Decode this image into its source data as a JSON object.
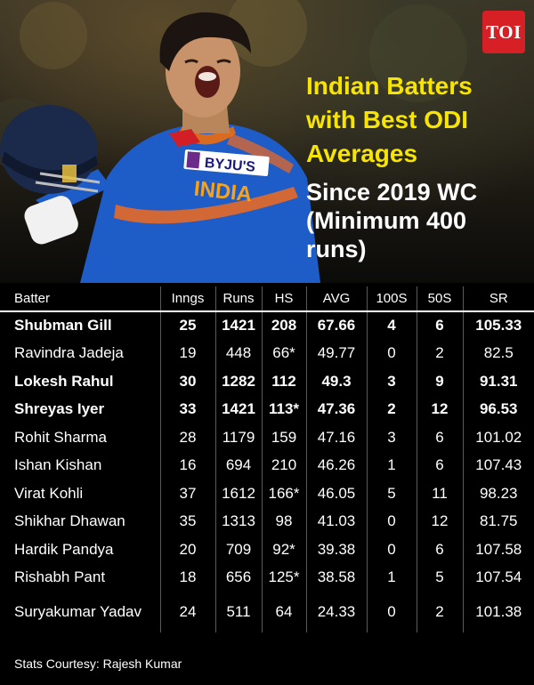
{
  "brand": "TOI",
  "headline": "Indian Batters with Best ODI Averages",
  "subheadline": "Since 2019 WC (Minimum 400 runs)",
  "photo": {
    "jersey_text": "INDIA",
    "sponsor_text": "BYJU'S"
  },
  "table": {
    "headers": [
      "Batter",
      "Inngs",
      "Runs",
      "HS",
      "AVG",
      "100S",
      "50S",
      "SR"
    ],
    "rows": [
      {
        "batter": "Shubman Gill",
        "inngs": "25",
        "runs": "1421",
        "hs": "208",
        "avg": "67.66",
        "hundreds": "4",
        "fifties": "6",
        "sr": "105.33",
        "bold": true
      },
      {
        "batter": "Ravindra Jadeja",
        "inngs": "19",
        "runs": "448",
        "hs": "66*",
        "avg": "49.77",
        "hundreds": "0",
        "fifties": "2",
        "sr": "82.5",
        "bold": false
      },
      {
        "batter": "Lokesh Rahul",
        "inngs": "30",
        "runs": "1282",
        "hs": "112",
        "avg": "49.3",
        "hundreds": "3",
        "fifties": "9",
        "sr": "91.31",
        "bold": true
      },
      {
        "batter": "Shreyas Iyer",
        "inngs": "33",
        "runs": "1421",
        "hs": "113*",
        "avg": "47.36",
        "hundreds": "2",
        "fifties": "12",
        "sr": "96.53",
        "bold": true
      },
      {
        "batter": "Rohit Sharma",
        "inngs": "28",
        "runs": "1179",
        "hs": "159",
        "avg": "47.16",
        "hundreds": "3",
        "fifties": "6",
        "sr": "101.02",
        "bold": false
      },
      {
        "batter": "Ishan Kishan",
        "inngs": "16",
        "runs": "694",
        "hs": "210",
        "avg": "46.26",
        "hundreds": "1",
        "fifties": "6",
        "sr": "107.43",
        "bold": false
      },
      {
        "batter": "Virat Kohli",
        "inngs": "37",
        "runs": "1612",
        "hs": "166*",
        "avg": "46.05",
        "hundreds": "5",
        "fifties": "11",
        "sr": "98.23",
        "bold": false
      },
      {
        "batter": "Shikhar Dhawan",
        "inngs": "35",
        "runs": "1313",
        "hs": "98",
        "avg": "41.03",
        "hundreds": "0",
        "fifties": "12",
        "sr": "81.75",
        "bold": false
      },
      {
        "batter": "Hardik Pandya",
        "inngs": "20",
        "runs": "709",
        "hs": "92*",
        "avg": "39.38",
        "hundreds": "0",
        "fifties": "6",
        "sr": "107.58",
        "bold": false
      },
      {
        "batter": "Rishabh Pant",
        "inngs": "18",
        "runs": "656",
        "hs": "125*",
        "avg": "38.58",
        "hundreds": "1",
        "fifties": "5",
        "sr": "107.54",
        "bold": false
      },
      {
        "batter": "Suryakumar Yadav",
        "inngs": "24",
        "runs": "511",
        "hs": "64",
        "avg": "24.33",
        "hundreds": "0",
        "fifties": "2",
        "sr": "101.38",
        "bold": false
      }
    ]
  },
  "footer": "Stats Courtesy: Rajesh Kumar"
}
